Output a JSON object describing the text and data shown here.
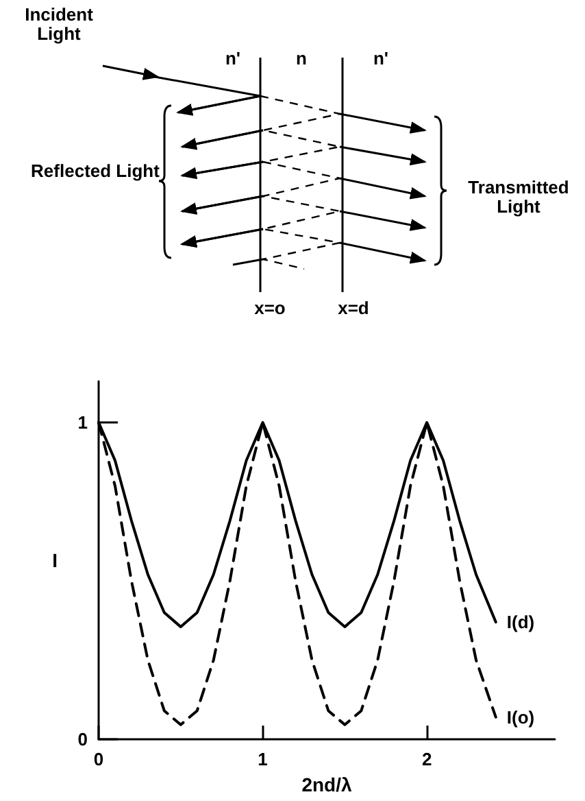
{
  "chart_data": {
    "type": "line",
    "xlabel": "2nd/λ",
    "ylabel": "I",
    "x": [
      0,
      0.1,
      0.2,
      0.3,
      0.4,
      0.5,
      0.6,
      0.7,
      0.8,
      0.9,
      1,
      1.1,
      1.2,
      1.3,
      1.4,
      1.5,
      1.6,
      1.7,
      1.8,
      1.9,
      2,
      2.1,
      2.2,
      2.3,
      2.42
    ],
    "series": [
      {
        "name": "I(d)",
        "color": "#000000",
        "line_style": "solid",
        "values": [
          1,
          0.88,
          0.69,
          0.52,
          0.4,
          0.355,
          0.4,
          0.52,
          0.69,
          0.88,
          1,
          0.88,
          0.69,
          0.52,
          0.4,
          0.355,
          0.4,
          0.52,
          0.69,
          0.88,
          1,
          0.88,
          0.69,
          0.52,
          0.37
        ]
      },
      {
        "name": "I(o)",
        "color": "#000000",
        "line_style": "dashed",
        "values": [
          1,
          0.8,
          0.5,
          0.25,
          0.09,
          0.046,
          0.09,
          0.25,
          0.5,
          0.8,
          1,
          0.8,
          0.5,
          0.25,
          0.09,
          0.046,
          0.09,
          0.25,
          0.5,
          0.8,
          1,
          0.8,
          0.5,
          0.25,
          0.07
        ]
      }
    ],
    "xlim": [
      0,
      2.78
    ],
    "xticks": [
      0,
      1,
      2
    ],
    "ylim": [
      0,
      1.13
    ],
    "yticks": [
      0,
      1
    ],
    "marker": "none",
    "grid": false,
    "legend": false,
    "annotations": [
      "Incident Light",
      "n'",
      "n",
      "n'",
      "Reflected Light",
      "Transmitted Light",
      "x=o",
      "x=d"
    ]
  }
}
